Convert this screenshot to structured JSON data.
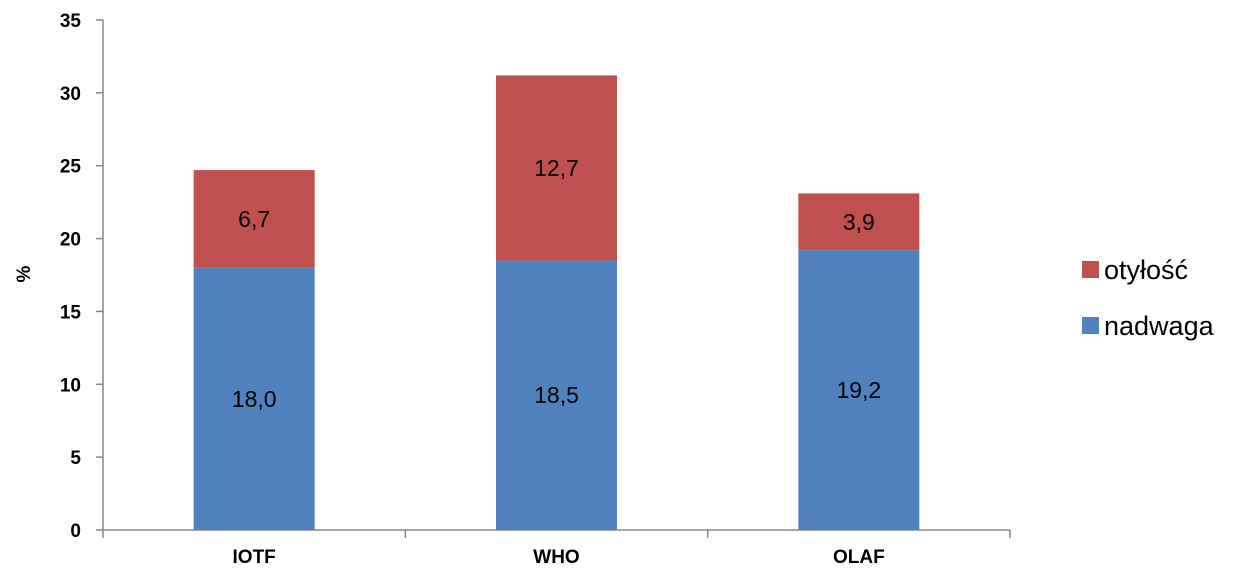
{
  "chart_data": {
    "type": "bar",
    "stacked": true,
    "title": "",
    "xlabel": "",
    "ylabel": "%",
    "ylim": [
      0,
      35
    ],
    "yticks": [
      0,
      5,
      10,
      15,
      20,
      25,
      30,
      35
    ],
    "grid": false,
    "legend_position": "right",
    "categories": [
      "IOTF",
      "WHO",
      "OLAF"
    ],
    "series": [
      {
        "name": "nadwaga",
        "color": "#4f81bd",
        "values": [
          18.0,
          18.5,
          19.2
        ],
        "labels": [
          "18,0",
          "18,5",
          "19,2"
        ]
      },
      {
        "name": "otyłość",
        "color": "#c0504d",
        "values": [
          6.7,
          12.7,
          3.9
        ],
        "labels": [
          "6,7",
          "12,7",
          "3,9"
        ]
      }
    ],
    "legend_order": [
      "otyłość",
      "nadwaga"
    ]
  }
}
